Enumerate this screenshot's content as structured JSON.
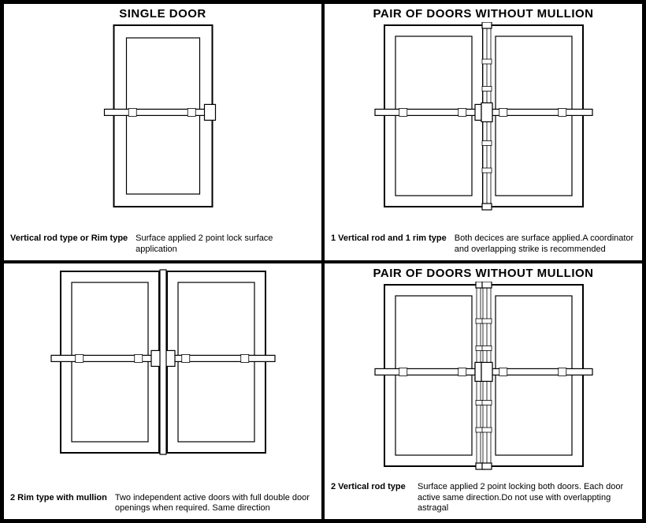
{
  "stroke": "#000000",
  "bg": "#ffffff",
  "stroke_width": {
    "outer": 2,
    "inner": 1.2,
    "light": 0.8
  },
  "panels": [
    {
      "title": "SINGLE DOOR",
      "caption_left": "Vertical rod type or Rim type",
      "caption_right": "Surface applied 2 point lock surface application",
      "doors": 1,
      "vertical_rod_left": false,
      "vertical_rod_right": false,
      "mullion": false,
      "inner_inset": 16
    },
    {
      "title": "PAIR OF DOORS WITHOUT MULLION",
      "caption_left": "1 Vertical rod and 1 rim  type",
      "caption_right": "Both decices are surface applied.A coordinator and overlapping strike is recommended",
      "doors": 2,
      "vertical_rod_left": false,
      "vertical_rod_right": true,
      "mullion": false,
      "inner_inset": 14
    },
    {
      "title": "",
      "caption_left": "2 Rim type with mullion",
      "caption_right": "Two independent active doors with full double door openings when required. Same direction",
      "doors": 2,
      "vertical_rod_left": false,
      "vertical_rod_right": false,
      "mullion": true,
      "inner_inset": 14
    },
    {
      "title": "PAIR OF DOORS WITHOUT MULLION",
      "caption_left": "2 Vertical rod type",
      "caption_right": "Surface applied 2 point locking both doors. Each door active same direction.Do not use with overlappting astragal",
      "doors": 2,
      "vertical_rod_left": true,
      "vertical_rod_right": true,
      "mullion": false,
      "inner_inset": 14
    }
  ]
}
